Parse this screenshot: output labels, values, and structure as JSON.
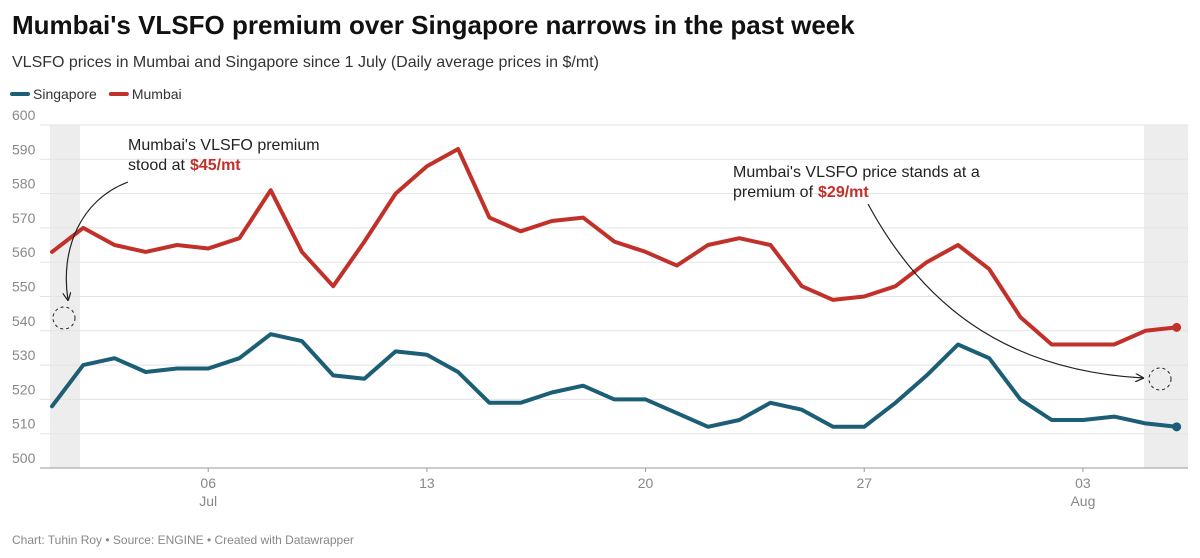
{
  "chart_data": {
    "type": "line",
    "title": "Mumbai's VLSFO premium over Singapore narrows in the past week",
    "subtitle": "VLSFO prices in Mumbai and Singapore since 1 July (Daily average prices in $/mt)",
    "source": "Chart: Tuhin Roy • Source: ENGINE • Created with Datawrapper",
    "x": [
      "07-01",
      "07-02",
      "07-03",
      "07-04",
      "07-05",
      "07-06",
      "07-07",
      "07-08",
      "07-09",
      "07-10",
      "07-11",
      "07-12",
      "07-13",
      "07-14",
      "07-15",
      "07-16",
      "07-17",
      "07-18",
      "07-19",
      "07-20",
      "07-21",
      "07-22",
      "07-23",
      "07-24",
      "07-25",
      "07-26",
      "07-27",
      "07-28",
      "07-29",
      "07-30",
      "07-31",
      "08-01",
      "08-02",
      "08-03",
      "08-04",
      "08-05",
      "08-06"
    ],
    "series": [
      {
        "name": "Singapore",
        "color": "#1b5e75",
        "values": [
          518,
          530,
          532,
          528,
          529,
          529,
          532,
          539,
          537,
          527,
          526,
          534,
          533,
          528,
          519,
          519,
          522,
          524,
          520,
          520,
          516,
          512,
          514,
          519,
          517,
          512,
          512,
          519,
          527,
          536,
          532,
          520,
          514,
          514,
          515,
          513,
          512
        ]
      },
      {
        "name": "Mumbai",
        "color": "#c1312a",
        "values": [
          563,
          570,
          565,
          563,
          565,
          564,
          567,
          581,
          563,
          553,
          566,
          580,
          588,
          593,
          573,
          569,
          572,
          573,
          566,
          563,
          559,
          565,
          567,
          565,
          553,
          549,
          550,
          553,
          560,
          565,
          558,
          544,
          536,
          536,
          536,
          540,
          541
        ]
      }
    ],
    "ylim": [
      500,
      600
    ],
    "yticks": [
      500,
      510,
      520,
      530,
      540,
      550,
      560,
      570,
      580,
      590,
      600
    ],
    "xticks": [
      {
        "value": "07-06",
        "label": "06"
      },
      {
        "value": "07-13",
        "label": "13"
      },
      {
        "value": "07-20",
        "label": "20"
      },
      {
        "value": "07-27",
        "label": "27"
      },
      {
        "value": "08-03",
        "label": "03"
      }
    ],
    "xtick_months": [
      "Jul",
      null,
      null,
      null,
      "Aug"
    ],
    "grid": true,
    "legend": "top-left",
    "annotations": [
      {
        "lines": [
          "Mumbai's VLSFO premium",
          "stood at"
        ],
        "highlight": "$45/mt"
      },
      {
        "lines": [
          "Mumbai's VLSFO price stands at a",
          "premium of"
        ],
        "highlight": "$29/mt"
      }
    ]
  }
}
